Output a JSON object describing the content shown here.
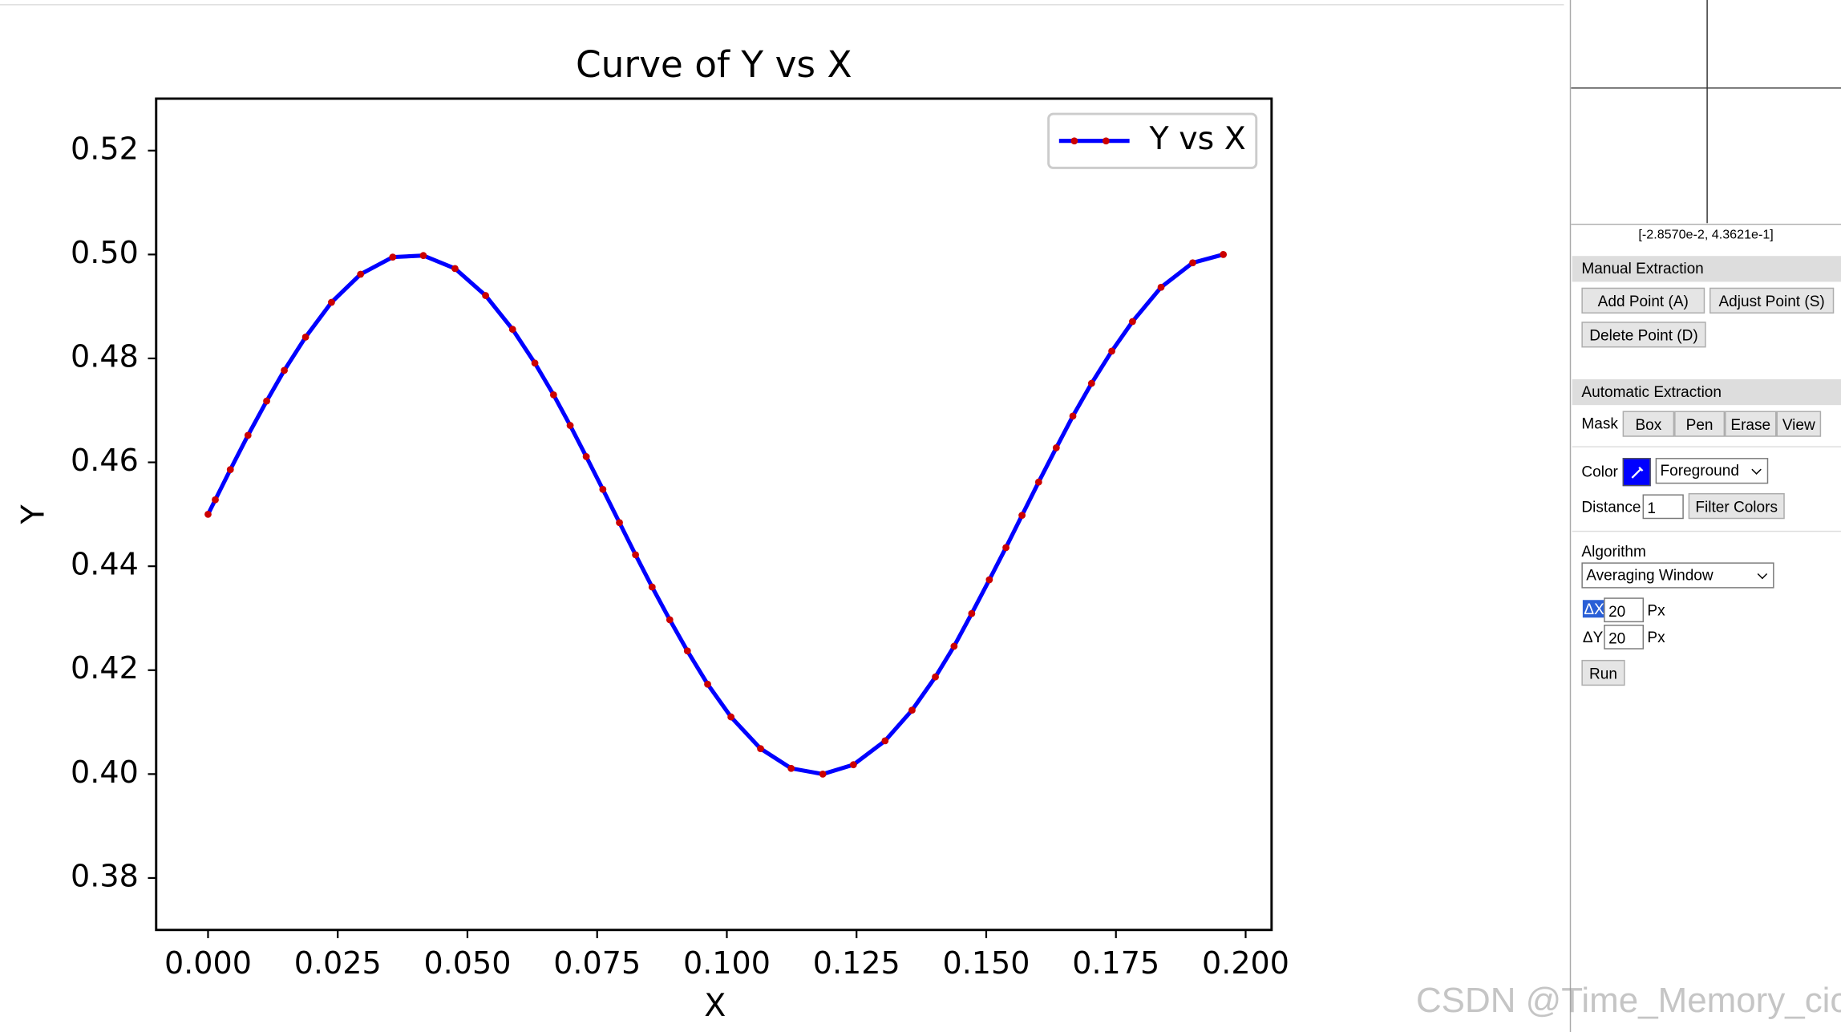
{
  "chart_data": {
    "type": "line",
    "title": "Curve of Y vs X",
    "xlabel": "X",
    "ylabel": "Y",
    "x": [
      0.0,
      0.0014,
      0.0043,
      0.0077,
      0.0113,
      0.0147,
      0.0188,
      0.0238,
      0.0294,
      0.0356,
      0.0415,
      0.0476,
      0.0535,
      0.0587,
      0.063,
      0.0666,
      0.0698,
      0.0729,
      0.0761,
      0.0793,
      0.0824,
      0.0856,
      0.089,
      0.0924,
      0.0963,
      0.1008,
      0.1065,
      0.1124,
      0.1185,
      0.1244,
      0.1305,
      0.1357,
      0.1402,
      0.1438,
      0.1472,
      0.1506,
      0.1538,
      0.1569,
      0.1601,
      0.1635,
      0.1667,
      0.1703,
      0.1742,
      0.1782,
      0.1837,
      0.1898,
      0.1957
    ],
    "series": [
      {
        "name": "Y vs X",
        "color": "#0000ff",
        "marker_color": "#cc0000",
        "values": [
          0.45,
          0.4528,
          0.4586,
          0.4652,
          0.4718,
          0.4777,
          0.4841,
          0.4908,
          0.4962,
          0.4995,
          0.4998,
          0.4973,
          0.4921,
          0.4856,
          0.4791,
          0.473,
          0.4671,
          0.4611,
          0.4548,
          0.4484,
          0.4422,
          0.436,
          0.4297,
          0.4237,
          0.4173,
          0.411,
          0.4049,
          0.4011,
          0.4,
          0.4018,
          0.4064,
          0.4123,
          0.4187,
          0.4246,
          0.4309,
          0.4374,
          0.4436,
          0.4498,
          0.4562,
          0.4628,
          0.4689,
          0.4752,
          0.4814,
          0.4871,
          0.4937,
          0.4984,
          0.5
        ]
      }
    ],
    "xlim": [
      -0.01,
      0.205
    ],
    "ylim": [
      0.37,
      0.53
    ],
    "xticks": [
      {
        "value": 0,
        "label": "0.000"
      },
      {
        "value": 0.025,
        "label": "0.025"
      },
      {
        "value": 0.05,
        "label": "0.050"
      },
      {
        "value": 0.075,
        "label": "0.075"
      },
      {
        "value": 0.1,
        "label": "0.100"
      },
      {
        "value": 0.125,
        "label": "0.125"
      },
      {
        "value": 0.15,
        "label": "0.150"
      },
      {
        "value": 0.175,
        "label": "0.175"
      },
      {
        "value": 0.2,
        "label": "0.200"
      }
    ],
    "yticks": [
      0.38,
      {
        "value": 0.4,
        "label": "0.40"
      },
      0.42,
      0.44,
      0.46,
      0.48,
      {
        "value": 0.5,
        "label": "0.50"
      },
      0.52
    ],
    "grid": false,
    "legend": "upper right"
  },
  "panel": {
    "coords": "[-2.8570e-2, 4.3621e-1]",
    "manual": {
      "title": "Manual Extraction",
      "buttons": [
        "Add Point (A)",
        "Adjust Point (S)",
        "Delete Point (D)"
      ]
    },
    "automatic": {
      "title": "Automatic Extraction",
      "mask_label": "Mask",
      "mask_buttons": [
        "Box",
        "Pen",
        "Erase",
        "View"
      ],
      "color_label": "Color",
      "color_mode": "Foreground",
      "distance_label": "Distance",
      "distance": 1,
      "filter_button": "Filter Colors",
      "algorithm_label": "Algorithm",
      "algorithm": "Averaging Window",
      "dx_label": "ΔX",
      "dx": 20,
      "dy_label": "ΔY",
      "dy": 20,
      "unit": "Px",
      "run": "Run"
    }
  },
  "watermark": "CSDN @Time_Memory_cici"
}
